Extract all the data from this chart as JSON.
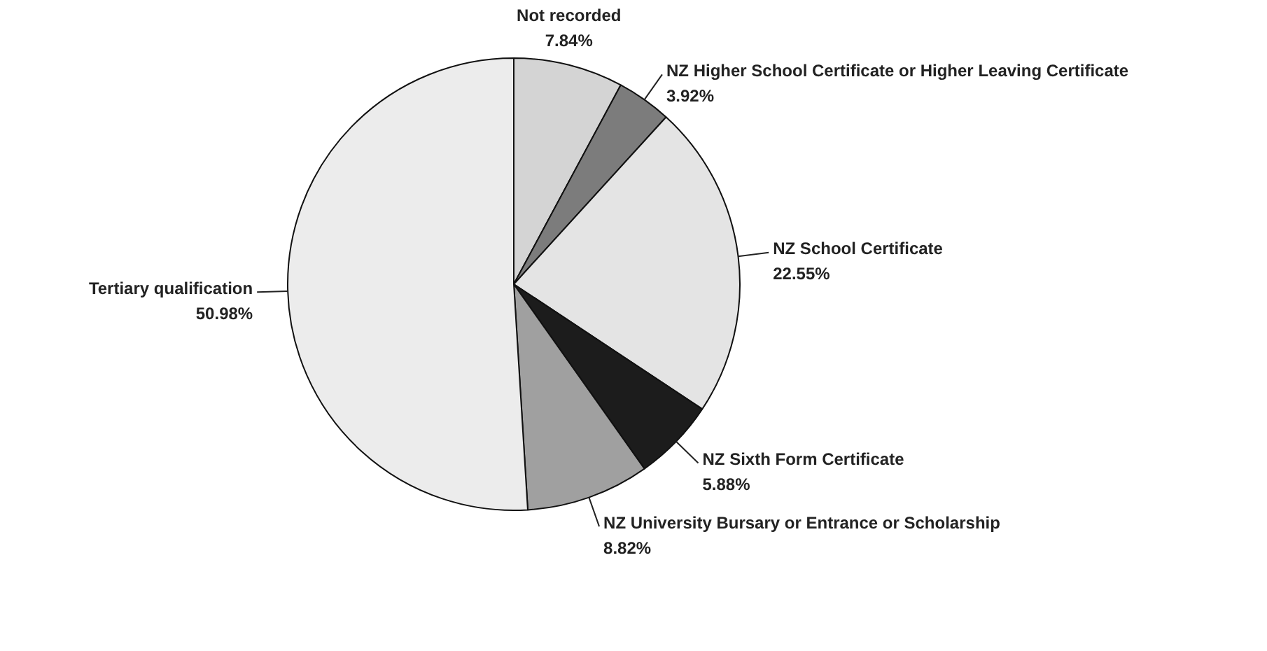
{
  "chart_data": {
    "type": "pie",
    "categories": [
      "Not recorded",
      "NZ Higher School Certificate or Higher Leaving Certificate",
      "NZ School Certificate",
      "NZ Sixth Form Certificate",
      "NZ University Bursary or Entrance or Scholarship",
      "Tertiary qualification"
    ],
    "values": [
      7.84,
      3.92,
      22.55,
      5.88,
      8.82,
      50.98
    ],
    "colors": [
      "#d4d4d4",
      "#7c7c7c",
      "#e4e4e4",
      "#1c1c1c",
      "#a0a0a0",
      "#ececec"
    ],
    "value_labels": [
      "7.84%",
      "3.92%",
      "22.55%",
      "5.88%",
      "8.82%",
      "50.98%"
    ]
  }
}
